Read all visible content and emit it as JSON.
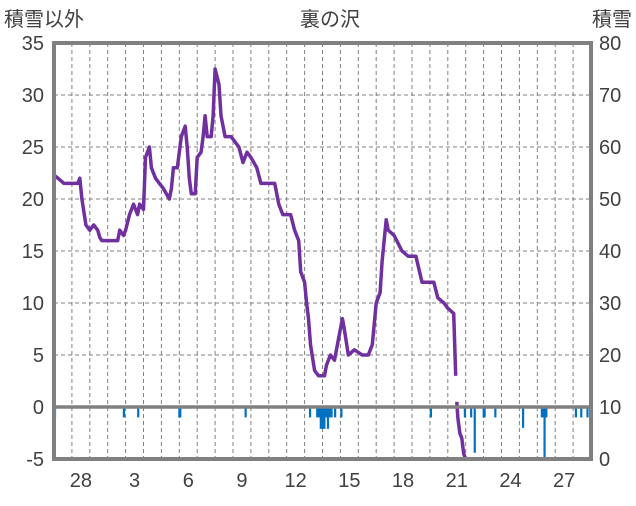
{
  "chart_data": {
    "type": "line",
    "title": "裏の沢",
    "ylabel_left": "積雪以外",
    "ylabel_right": "積雪",
    "ylim_left": [
      -5,
      35
    ],
    "ylim_right": [
      0,
      80
    ],
    "yticks_left": [
      "35",
      "30",
      "25",
      "20",
      "15",
      "10",
      "5",
      "0",
      "-5"
    ],
    "yticks_right": [
      "80",
      "70",
      "60",
      "50",
      "40",
      "30",
      "20",
      "10",
      "0"
    ],
    "xlim_days": [
      0,
      30
    ],
    "x_ticks": [
      {
        "label": "28",
        "day": 1.5
      },
      {
        "label": "3",
        "day": 4.5
      },
      {
        "label": "6",
        "day": 7.5
      },
      {
        "label": "9",
        "day": 10.5
      },
      {
        "label": "12",
        "day": 13.5
      },
      {
        "label": "15",
        "day": 16.5
      },
      {
        "label": "18",
        "day": 19.5
      },
      {
        "label": "21",
        "day": 22.5
      },
      {
        "label": "24",
        "day": 25.5
      },
      {
        "label": "27",
        "day": 28.5
      }
    ],
    "grid": true,
    "colors": {
      "snow_depth": "#7030A0",
      "other": "#0070C0",
      "frame": "#808080",
      "grid": "#808080"
    },
    "series": [
      {
        "name": "積雪",
        "axis": "right",
        "type": "line",
        "x": [
          0,
          0.22,
          0.56,
          1.33,
          1.44,
          1.56,
          1.78,
          2,
          2.22,
          2.44,
          2.56,
          2.67,
          3.56,
          3.67,
          3.89,
          4,
          4.22,
          4.44,
          4.67,
          4.78,
          5,
          5.11,
          5.33,
          5.44,
          5.67,
          5.89,
          6.11,
          6.44,
          6.56,
          6.67,
          6.89,
          7.11,
          7.33,
          7.44,
          7.56,
          7.67,
          7.89,
          8,
          8.22,
          8.33,
          8.44,
          8.56,
          8.78,
          8.89,
          9,
          9.22,
          9.33,
          9.56,
          9.89,
          10.11,
          10.33,
          10.56,
          10.78,
          11,
          11.33,
          11.56,
          12.33,
          12.56,
          12.78,
          13.22,
          13.44,
          13.67,
          13.78,
          14,
          14.11,
          14.22,
          14.33,
          14.56,
          14.78,
          15.11,
          15.22,
          15.44,
          15.67,
          15.89,
          16.11,
          16.22,
          16.44,
          16.78,
          17.22,
          17.56,
          17.78,
          18,
          18.22,
          18.33,
          18.56,
          18.67,
          19,
          19.44,
          19.78,
          20.22,
          20.56,
          21.22,
          21.44,
          21.78,
          22,
          22.33,
          22.44,
          22.47,
          22.5,
          22.56,
          22.67,
          22.78,
          22.89,
          23,
          29.83
        ],
        "y": [
          54.6,
          54,
          53,
          53,
          54,
          50,
          45,
          44,
          45,
          44,
          42.6,
          42,
          42,
          44,
          43,
          44,
          47,
          49,
          47,
          49,
          48,
          58,
          60,
          56,
          54,
          53,
          52,
          50,
          52,
          56,
          56,
          62,
          64,
          60,
          54,
          51,
          51,
          58,
          59,
          62,
          66,
          62,
          62,
          66,
          75,
          72,
          66,
          62,
          62,
          61,
          60,
          57,
          59,
          58,
          56,
          53,
          53,
          49,
          47,
          47,
          44,
          42,
          36,
          34,
          30,
          27,
          22,
          17,
          16,
          16,
          18,
          20,
          19,
          23,
          27,
          25,
          20,
          21,
          20,
          20,
          22,
          30,
          32,
          38,
          46,
          44,
          43,
          40,
          39,
          39,
          34,
          34,
          31,
          30,
          29,
          28,
          16,
          null,
          11,
          8,
          5,
          4,
          1,
          0,
          0
        ]
      },
      {
        "name": "積雪以外",
        "axis": "left",
        "type": "bar",
        "x": [
          0.05,
          3.9,
          4.7,
          7.0,
          7.05,
          10.7,
          14.3,
          14.7,
          14.8,
          14.9,
          15.0,
          15.1,
          15.2,
          15.3,
          15.4,
          15.5,
          15.7,
          16.05,
          21.05,
          22.95,
          23.3,
          23.5,
          24.0,
          24.05,
          24.65,
          26.2,
          27.25,
          27.35,
          27.4,
          27.5,
          29.15,
          29.45,
          29.8
        ],
        "values": [
          -1,
          -1,
          -1,
          -1,
          -1,
          -1,
          -1,
          -1,
          -1,
          -2.1,
          -2.1,
          -2.1,
          -1,
          -2.1,
          -1,
          -1,
          -1,
          -1,
          -1,
          -1,
          -1,
          -4.4,
          -1,
          -1,
          -1,
          -2,
          -1,
          -1,
          -5,
          -1,
          -1,
          -1,
          -1
        ]
      }
    ]
  }
}
